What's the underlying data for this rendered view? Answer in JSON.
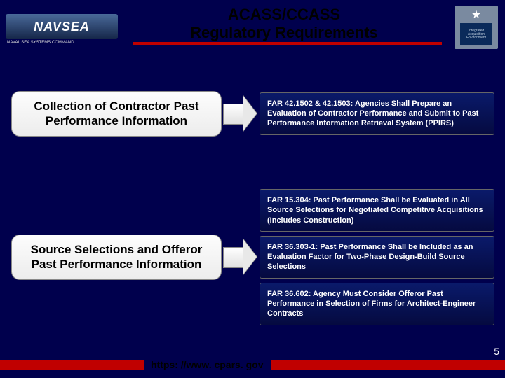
{
  "header": {
    "logo_text": "NAVSEA",
    "logo_sub": "NAVAL SEA SYSTEMS COMMAND",
    "title_line1": "ACASS/CCASS",
    "title_line2": "Regulatory Requirements",
    "badge_text": "Integrated Acquisition Environment"
  },
  "rows": [
    {
      "left": "Collection of Contractor Past Performance Information",
      "right": [
        "FAR 42.1502 & 42.1503:  Agencies Shall Prepare an Evaluation of Contractor Performance and Submit to Past Performance Information Retrieval System (PPIRS)"
      ]
    },
    {
      "left": "Source Selections and Offeror Past Performance Information",
      "right": [
        "FAR 15.304:  Past Performance Shall be Evaluated in All Source Selections for Negotiated Competitive Acquisitions (Includes Construction)",
        "FAR 36.303-1: Past Performance Shall be Included as an Evaluation Factor for Two-Phase Design-Build Source Selections",
        "FAR 36.602: Agency Must Consider Offeror Past Performance in Selection of Firms for Architect-Engineer Contracts"
      ]
    }
  ],
  "footer": {
    "url": "https: //www. cpars. gov",
    "page_number": "5"
  },
  "colors": {
    "bg": "#00004d",
    "accent": "#c00000"
  }
}
